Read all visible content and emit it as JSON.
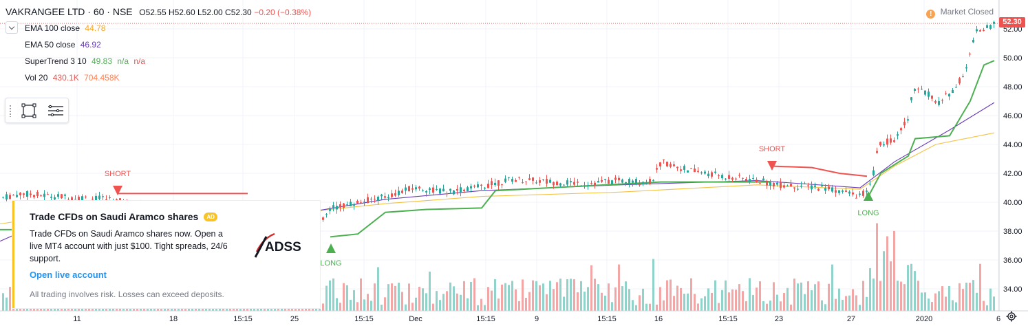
{
  "header": {
    "symbol": "VAKRANGEE LTD · 60 · NSE",
    "ohlc": "O52.55 H52.60 L52.00 C52.30",
    "change": "−0.20 (−0.38%)"
  },
  "indicators": [
    {
      "name": "EMA 100 close",
      "values": [
        "44.78"
      ],
      "colors": [
        "#f5a623"
      ]
    },
    {
      "name": "EMA 50 close",
      "values": [
        "46.92"
      ],
      "colors": [
        "#673ab7"
      ]
    },
    {
      "name": "SuperTrend 3 10",
      "values": [
        "49.83",
        "n/a",
        "n/a"
      ],
      "colors": [
        "#4caf50",
        "#4caf50",
        "#ef5350"
      ]
    },
    {
      "name": "Vol 20",
      "values": [
        "430.1K",
        "704.458K"
      ],
      "colors": [
        "#ef5350",
        "#ff7f50"
      ]
    }
  ],
  "market_status": {
    "icon": "info-icon",
    "dot": "!",
    "label": "Market Closed"
  },
  "last_price": "52.30",
  "price_axis": {
    "ticks": [
      "52.00",
      "50.00",
      "48.00",
      "46.00",
      "44.00",
      "42.00",
      "40.00",
      "38.00",
      "36.00",
      "34.00"
    ]
  },
  "time_axis": {
    "ticks": [
      "11",
      "18",
      "15:15",
      "25",
      "15:15",
      "Dec",
      "15:15",
      "9",
      "15:15",
      "16",
      "15:15",
      "23",
      "27",
      "2020",
      "6"
    ]
  },
  "signals": [
    {
      "label": "SHORT",
      "type": "short",
      "color": "#ef5350"
    },
    {
      "label": "LONG",
      "type": "long",
      "color": "#4caf50"
    },
    {
      "label": "SHORT",
      "type": "short",
      "color": "#ef5350"
    },
    {
      "label": "LONG",
      "type": "long",
      "color": "#4caf50"
    }
  ],
  "ad": {
    "title": "Trade CFDs on Saudi Aramco shares",
    "badge": "AD",
    "body": "Trade CFDs on Saudi Aramco shares now. Open a live MT4 account with just $100. Tight spreads, 24/6 support.",
    "link": "Open live account",
    "risk": "All trading involves risk. Losses can exceed deposits.",
    "logo_text": "ADSS"
  },
  "colors": {
    "up": "#26a69a",
    "down": "#ef5350",
    "st_up": "#4caf50",
    "st_down": "#ef5350",
    "ema100": "#f5c242",
    "ema50": "#673ab7",
    "vol_up": "#8fd3cb",
    "vol_down": "#f3a6a6"
  }
}
